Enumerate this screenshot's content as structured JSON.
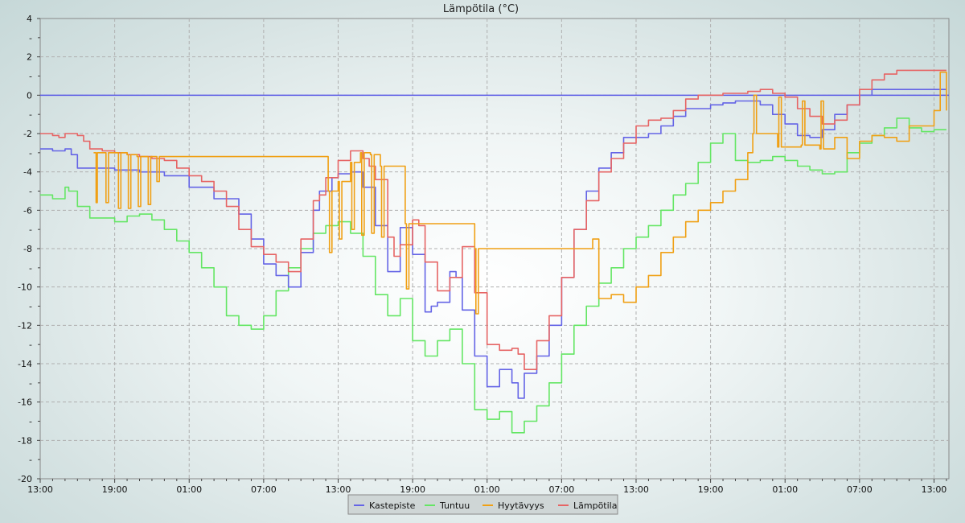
{
  "chart_data": {
    "type": "line",
    "title": "Lämpötila (°C)",
    "ylim": [
      -20,
      4
    ],
    "yticks": [
      "4",
      "2",
      "0",
      "-2",
      "-4",
      "-6",
      "-8",
      "-10",
      "-12",
      "-14",
      "-16",
      "-18",
      "-20"
    ],
    "xlim_hours": [
      0,
      73.2
    ],
    "xticks": [
      "13:00",
      "19:00",
      "01:00",
      "07:00",
      "13:00",
      "19:00",
      "01:00",
      "07:00",
      "13:00",
      "19:00",
      "01:00",
      "07:00",
      "13:00"
    ],
    "grid": true,
    "reference_line": {
      "y": 0,
      "color": "#5a5ae6"
    },
    "legend_position": "bottom-center",
    "series": [
      {
        "name": "Kastepiste",
        "color": "#6464e6",
        "x": [
          0,
          1,
          2,
          2.5,
          3,
          4.5,
          6,
          8,
          10,
          12,
          14,
          16,
          17,
          18,
          19,
          20,
          21,
          22,
          22.5,
          23.5,
          24,
          25,
          26,
          27,
          28,
          29,
          30,
          31,
          31.5,
          32,
          33,
          33.5,
          34,
          35,
          36,
          37,
          38,
          38.5,
          39,
          40,
          41,
          42,
          43,
          44,
          45,
          46,
          47,
          48,
          49,
          50,
          51,
          52,
          53,
          54,
          55,
          56,
          57,
          58,
          59,
          60,
          61,
          62,
          63,
          64,
          65,
          66,
          67,
          68,
          69,
          70,
          71,
          72,
          73
        ],
        "values": [
          -2.8,
          -2.9,
          -2.8,
          -3.1,
          -3.8,
          -3.8,
          -3.9,
          -4.0,
          -4.2,
          -4.8,
          -5.4,
          -6.2,
          -7.5,
          -8.8,
          -9.4,
          -10.0,
          -8.2,
          -6.0,
          -5.0,
          -4.3,
          -4.1,
          -4.0,
          -4.8,
          -6.8,
          -9.2,
          -6.9,
          -8.3,
          -11.3,
          -11.0,
          -10.8,
          -9.2,
          -9.5,
          -11.2,
          -13.6,
          -15.2,
          -14.3,
          -15.0,
          -15.8,
          -14.5,
          -13.6,
          -12.0,
          -9.5,
          -7.0,
          -5.0,
          -3.8,
          -3.0,
          -2.2,
          -2.2,
          -2.0,
          -1.6,
          -1.1,
          -0.7,
          -0.7,
          -0.5,
          -0.4,
          -0.3,
          -0.3,
          -0.5,
          -1.0,
          -1.5,
          -2.1,
          -2.2,
          -1.8,
          -1.0,
          -0.5,
          0.0,
          0.3,
          0.3,
          0.3,
          0.3,
          0.3,
          0.3,
          0.3
        ]
      },
      {
        "name": "Tuntuu",
        "color": "#64e664",
        "x": [
          0,
          1,
          2,
          2.3,
          3,
          4,
          5,
          6,
          7,
          8,
          9,
          10,
          11,
          12,
          13,
          14,
          15,
          16,
          17,
          18,
          19,
          20,
          21,
          22,
          23,
          24,
          25,
          26,
          27,
          28,
          29,
          30,
          31,
          32,
          33,
          34,
          35,
          36,
          37,
          38,
          39,
          40,
          41,
          42,
          43,
          44,
          45,
          46,
          47,
          48,
          49,
          50,
          51,
          52,
          53,
          54,
          55,
          56,
          57,
          58,
          59,
          60,
          61,
          62,
          63,
          64,
          65,
          66,
          67,
          68,
          69,
          70,
          71,
          72,
          73
        ],
        "values": [
          -5.2,
          -5.4,
          -4.8,
          -5.0,
          -5.8,
          -6.4,
          -6.4,
          -6.6,
          -6.3,
          -6.2,
          -6.5,
          -7.0,
          -7.6,
          -8.2,
          -9.0,
          -10.0,
          -11.5,
          -12.0,
          -12.2,
          -11.5,
          -10.2,
          -9.0,
          -8.0,
          -7.2,
          -6.8,
          -6.6,
          -7.2,
          -8.4,
          -10.4,
          -11.5,
          -10.6,
          -12.8,
          -13.6,
          -12.8,
          -12.2,
          -14.0,
          -16.4,
          -16.9,
          -16.5,
          -17.6,
          -17.0,
          -16.2,
          -15.0,
          -13.5,
          -12.0,
          -11.0,
          -9.8,
          -9.0,
          -8.0,
          -7.4,
          -6.8,
          -6.0,
          -5.2,
          -4.6,
          -3.5,
          -2.5,
          -2.0,
          -3.4,
          -3.5,
          -3.4,
          -3.2,
          -3.4,
          -3.7,
          -3.9,
          -4.1,
          -4.0,
          -3.0,
          -2.5,
          -2.1,
          -1.7,
          -1.2,
          -1.7,
          -1.9,
          -1.8,
          -1.8
        ]
      },
      {
        "name": "Hyytävyys",
        "color": "#f0a014",
        "x": [
          4.3,
          4.5,
          4.6,
          5.2,
          5.3,
          5.5,
          6.2,
          6.3,
          6.5,
          7.0,
          7.1,
          7.3,
          7.8,
          7.9,
          8.1,
          8.6,
          8.7,
          8.9,
          9.3,
          9.4,
          9.6,
          23.2,
          23.3,
          23.5,
          24.0,
          24.1,
          24.3,
          25.0,
          25.1,
          25.3,
          25.8,
          25.9,
          26.1,
          26.6,
          26.7,
          26.9,
          27.4,
          27.5,
          27.7,
          29.4,
          29.5,
          29.7,
          35.0,
          35.1,
          35.3,
          44.5,
          45,
          46,
          47,
          48,
          49,
          50,
          51,
          52,
          53,
          54,
          55,
          56,
          57,
          57.4,
          57.5,
          57.7,
          59.4,
          59.5,
          59.7,
          61.3,
          61.4,
          61.6,
          62.8,
          62.9,
          63.1,
          64,
          65,
          66,
          67,
          68,
          69,
          70,
          71,
          72,
          72.5,
          73
        ],
        "values": [
          -3.0,
          -5.6,
          -3.0,
          -3.0,
          -5.6,
          -3.0,
          -3.0,
          -5.9,
          -3.0,
          -3.1,
          -5.9,
          -3.1,
          -3.2,
          -5.8,
          -3.2,
          -3.2,
          -5.7,
          -3.2,
          -3.2,
          -4.5,
          -3.2,
          -5.0,
          -8.2,
          -5.0,
          -4.5,
          -7.5,
          -4.5,
          -3.5,
          -7.0,
          -3.5,
          -3.0,
          -7.3,
          -3.0,
          -3.1,
          -7.2,
          -3.1,
          -3.7,
          -7.4,
          -3.7,
          -6.7,
          -10.1,
          -6.7,
          -8.0,
          -11.4,
          -8.0,
          -7.5,
          -10.6,
          -10.4,
          -10.8,
          -10.0,
          -9.4,
          -8.2,
          -7.4,
          -6.6,
          -6.0,
          -5.6,
          -5.0,
          -4.4,
          -3.0,
          -2.0,
          0.0,
          -2.0,
          -2.7,
          -0.1,
          -2.7,
          -2.6,
          -0.3,
          -2.6,
          -2.8,
          -0.3,
          -2.8,
          -2.2,
          -3.3,
          -2.4,
          -2.1,
          -2.2,
          -2.4,
          -1.6,
          -1.6,
          -0.8,
          1.2,
          -0.8
        ]
      },
      {
        "name": "Lämpötila",
        "color": "#e66464",
        "x": [
          0,
          1,
          1.5,
          2,
          3,
          3.5,
          4,
          5,
          6,
          7,
          8,
          9,
          10,
          11,
          12,
          13,
          14,
          15,
          16,
          17,
          18,
          19,
          20,
          21,
          22,
          22.5,
          23,
          24,
          25,
          26,
          26.5,
          27,
          28,
          28.5,
          29,
          30,
          30.5,
          31,
          32,
          33,
          34,
          35,
          36,
          37,
          38,
          38.5,
          39,
          40,
          41,
          42,
          43,
          44,
          45,
          46,
          47,
          48,
          49,
          50,
          51,
          52,
          53,
          54,
          55,
          56,
          57,
          58,
          59,
          60,
          61,
          62,
          63,
          64,
          65,
          66,
          67,
          68,
          69,
          70,
          71,
          72,
          73
        ],
        "values": [
          -2.0,
          -2.1,
          -2.2,
          -2.0,
          -2.1,
          -2.4,
          -2.8,
          -2.9,
          -3.0,
          -3.1,
          -3.2,
          -3.3,
          -3.4,
          -3.8,
          -4.2,
          -4.5,
          -5.0,
          -5.8,
          -7.0,
          -7.9,
          -8.3,
          -8.7,
          -9.2,
          -7.5,
          -5.5,
          -5.2,
          -4.3,
          -3.4,
          -2.9,
          -3.3,
          -3.7,
          -4.4,
          -7.4,
          -8.4,
          -7.8,
          -6.5,
          -6.8,
          -8.7,
          -10.2,
          -9.5,
          -7.9,
          -10.3,
          -13.0,
          -13.3,
          -13.2,
          -13.5,
          -14.3,
          -12.8,
          -11.5,
          -9.5,
          -7.0,
          -5.5,
          -4.0,
          -3.3,
          -2.5,
          -1.6,
          -1.3,
          -1.2,
          -0.8,
          -0.2,
          0.0,
          0.0,
          0.1,
          0.1,
          0.2,
          0.3,
          0.1,
          -0.1,
          -0.7,
          -1.1,
          -1.5,
          -1.3,
          -0.5,
          0.3,
          0.8,
          1.1,
          1.3,
          1.3,
          1.3,
          1.3,
          1.3
        ]
      }
    ]
  }
}
